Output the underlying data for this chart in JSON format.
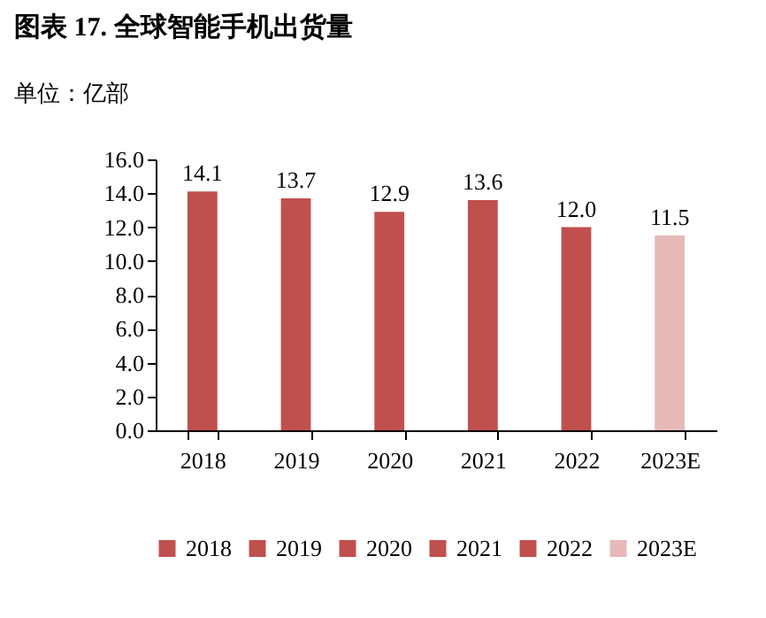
{
  "chart_data": {
    "type": "bar",
    "title": "图表 17. 全球智能手机出货量",
    "ylabel": "单位：亿部",
    "categories": [
      "2018",
      "2019",
      "2020",
      "2021",
      "2022",
      "2023E"
    ],
    "series": [
      {
        "name": "2018",
        "color": "#c0504d",
        "values": [
          14.1,
          null,
          null,
          null,
          null,
          null
        ],
        "value_labels": [
          "14.1",
          null,
          null,
          null,
          null,
          null
        ]
      },
      {
        "name": "2019",
        "color": "#c0504d",
        "values": [
          null,
          13.7,
          null,
          null,
          null,
          null
        ],
        "value_labels": [
          null,
          "13.7",
          null,
          null,
          null,
          null
        ]
      },
      {
        "name": "2020",
        "color": "#c0504d",
        "values": [
          null,
          null,
          12.9,
          null,
          null,
          null
        ],
        "value_labels": [
          null,
          null,
          "12.9",
          null,
          null,
          null
        ]
      },
      {
        "name": "2021",
        "color": "#c0504d",
        "values": [
          null,
          null,
          null,
          13.6,
          null,
          null
        ],
        "value_labels": [
          null,
          null,
          null,
          "13.6",
          null,
          null
        ]
      },
      {
        "name": "2022",
        "color": "#c0504d",
        "values": [
          null,
          null,
          null,
          null,
          12.0,
          null
        ],
        "value_labels": [
          null,
          null,
          null,
          null,
          "12.0",
          null
        ]
      },
      {
        "name": "2023E",
        "color": "#e6b9b8",
        "values": [
          null,
          null,
          null,
          null,
          null,
          11.5
        ],
        "value_labels": [
          null,
          null,
          null,
          null,
          null,
          "11.5"
        ]
      }
    ],
    "ylim": [
      0,
      16
    ],
    "yticks": [
      {
        "value": 0,
        "label": "0.0"
      },
      {
        "value": 2,
        "label": "2.0"
      },
      {
        "value": 4,
        "label": "4.0"
      },
      {
        "value": 6,
        "label": "6.0"
      },
      {
        "value": 8,
        "label": "8.0"
      },
      {
        "value": 10,
        "label": "10.0"
      },
      {
        "value": 12,
        "label": "12.0"
      },
      {
        "value": 14,
        "label": "14.0"
      },
      {
        "value": 16,
        "label": "16.0"
      }
    ],
    "grid": false,
    "legend": "bottom"
  }
}
